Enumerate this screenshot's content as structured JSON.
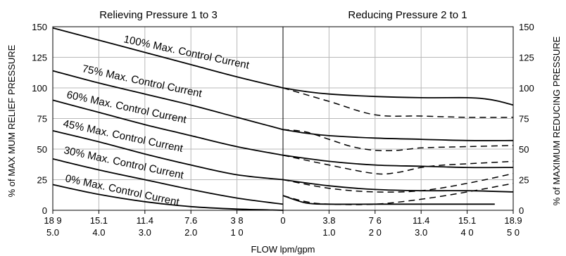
{
  "chart_data": {
    "type": "line",
    "title_left": "Relieving Pressure 1 to 3",
    "title_right": "Reducing Pressure 2 to 1",
    "xlabel": "FLOW lpm/gpm",
    "ylabel_left": "% of MAX MUM RELIEF PRESSURE",
    "ylabel_right": "% of MAXIMUM REDUCING PRESSURE",
    "ylim": [
      0,
      150
    ],
    "y_ticks": [
      0,
      25,
      50,
      75,
      100,
      125,
      150
    ],
    "x_ticks": [
      {
        "lpm": "18 9",
        "gpm": "5.0"
      },
      {
        "lpm": "15.1",
        "gpm": "4.0"
      },
      {
        "lpm": "11.4",
        "gpm": "3.0"
      },
      {
        "lpm": "7.6",
        "gpm": "2.0"
      },
      {
        "lpm": "3 8",
        "gpm": "1 0"
      },
      {
        "lpm": "0",
        "gpm": ""
      },
      {
        "lpm": "3.8",
        "gpm": "1.0"
      },
      {
        "lpm": "7 6",
        "gpm": "2 0"
      },
      {
        "lpm": "11.4",
        "gpm": "3.0"
      },
      {
        "lpm": "15.1",
        "gpm": "4 0"
      },
      {
        "lpm": "18.9",
        "gpm": "5 0"
      }
    ],
    "x_note": "x is flow in gpm; negative = relieving (1 to 3), positive = reducing (2 to 1)",
    "grid": true,
    "series": [
      {
        "name": "100% Max. Control Current",
        "relieving": [
          [
            -5.0,
            149
          ],
          [
            -4.0,
            139
          ],
          [
            -3.0,
            129
          ],
          [
            -2.0,
            119
          ],
          [
            -1.0,
            109
          ],
          [
            0,
            100
          ]
        ],
        "reducing": [
          [
            0,
            100
          ],
          [
            0.5,
            97
          ],
          [
            1.0,
            95
          ],
          [
            2.0,
            93
          ],
          [
            3.0,
            92
          ],
          [
            4.0,
            92
          ],
          [
            4.4,
            91
          ],
          [
            4.7,
            89
          ],
          [
            5.0,
            86
          ]
        ],
        "reducing_dashed": [
          [
            0,
            100
          ],
          [
            1.0,
            89
          ],
          [
            2.0,
            78
          ],
          [
            3.0,
            77
          ],
          [
            4.0,
            76
          ],
          [
            5.0,
            76
          ]
        ]
      },
      {
        "name": "75% Max. Control Current",
        "relieving": [
          [
            -5.0,
            114
          ],
          [
            -4.0,
            104
          ],
          [
            -3.0,
            95
          ],
          [
            -2.0,
            86
          ],
          [
            -1.0,
            76
          ],
          [
            0,
            66
          ]
        ],
        "reducing": [
          [
            0,
            66
          ],
          [
            0.5,
            63
          ],
          [
            1.0,
            61
          ],
          [
            2.0,
            59
          ],
          [
            3.0,
            58
          ],
          [
            4.0,
            57
          ],
          [
            5.0,
            57
          ]
        ],
        "reducing_dashed": [
          [
            0,
            66
          ],
          [
            0.5,
            64
          ],
          [
            1.0,
            58
          ],
          [
            1.5,
            52
          ],
          [
            2.0,
            49
          ],
          [
            2.5,
            49
          ],
          [
            3.0,
            51
          ],
          [
            4.0,
            52
          ],
          [
            5.0,
            53
          ]
        ]
      },
      {
        "name": "60% Max. Control Current",
        "relieving": [
          [
            -5.0,
            90
          ],
          [
            -4.0,
            80
          ],
          [
            -3.0,
            70
          ],
          [
            -2.0,
            61
          ],
          [
            -1.0,
            52
          ],
          [
            0,
            45
          ]
        ],
        "reducing": [
          [
            0,
            45
          ],
          [
            1.0,
            40
          ],
          [
            2.0,
            37
          ],
          [
            3.0,
            36
          ],
          [
            4.0,
            35
          ],
          [
            5.0,
            35
          ]
        ],
        "reducing_dashed": [
          [
            0,
            45
          ],
          [
            1.0,
            37
          ],
          [
            2.0,
            30
          ],
          [
            2.5,
            31
          ],
          [
            3.0,
            35
          ],
          [
            3.5,
            37
          ],
          [
            4.0,
            38
          ],
          [
            5.0,
            40
          ]
        ]
      },
      {
        "name": "45% Max. Control Current",
        "relieving": [
          [
            -5.0,
            65
          ],
          [
            -4.0,
            56
          ],
          [
            -3.0,
            46
          ],
          [
            -2.0,
            37
          ],
          [
            -1.0,
            29
          ],
          [
            0,
            25
          ]
        ],
        "reducing": [
          [
            0,
            25
          ],
          [
            1.0,
            20
          ],
          [
            2.0,
            17
          ],
          [
            3.0,
            16
          ],
          [
            4.0,
            16
          ],
          [
            5.0,
            15
          ]
        ],
        "reducing_dashed": [
          [
            0,
            25
          ],
          [
            1.0,
            18
          ],
          [
            2.0,
            15
          ],
          [
            3.0,
            16
          ],
          [
            4.0,
            22
          ],
          [
            5.0,
            30
          ]
        ]
      },
      {
        "name": "30% Max. Control Current",
        "relieving": [
          [
            -5.0,
            42
          ],
          [
            -4.0,
            33
          ],
          [
            -3.0,
            25
          ],
          [
            -2.0,
            17
          ],
          [
            -1.0,
            10
          ],
          [
            0,
            5
          ]
        ],
        "reducing": [],
        "reducing_dashed": []
      },
      {
        "name": "0% Max. Control Current",
        "relieving": [
          [
            -5.0,
            21
          ],
          [
            -4.0,
            13
          ],
          [
            -3.0,
            7
          ],
          [
            -2.0,
            3
          ],
          [
            -1.0,
            1
          ],
          [
            0,
            0
          ]
        ],
        "reducing": [
          [
            0,
            12
          ],
          [
            0.5,
            6
          ],
          [
            1.0,
            5
          ],
          [
            2.0,
            5
          ],
          [
            3.0,
            5
          ],
          [
            4.0,
            5
          ],
          [
            4.6,
            5
          ]
        ],
        "reducing_dashed": [
          [
            0,
            12
          ],
          [
            0.5,
            7
          ],
          [
            1.0,
            5
          ],
          [
            2.0,
            5
          ],
          [
            3.0,
            9
          ],
          [
            4.0,
            15
          ],
          [
            5.0,
            22
          ]
        ]
      }
    ]
  }
}
